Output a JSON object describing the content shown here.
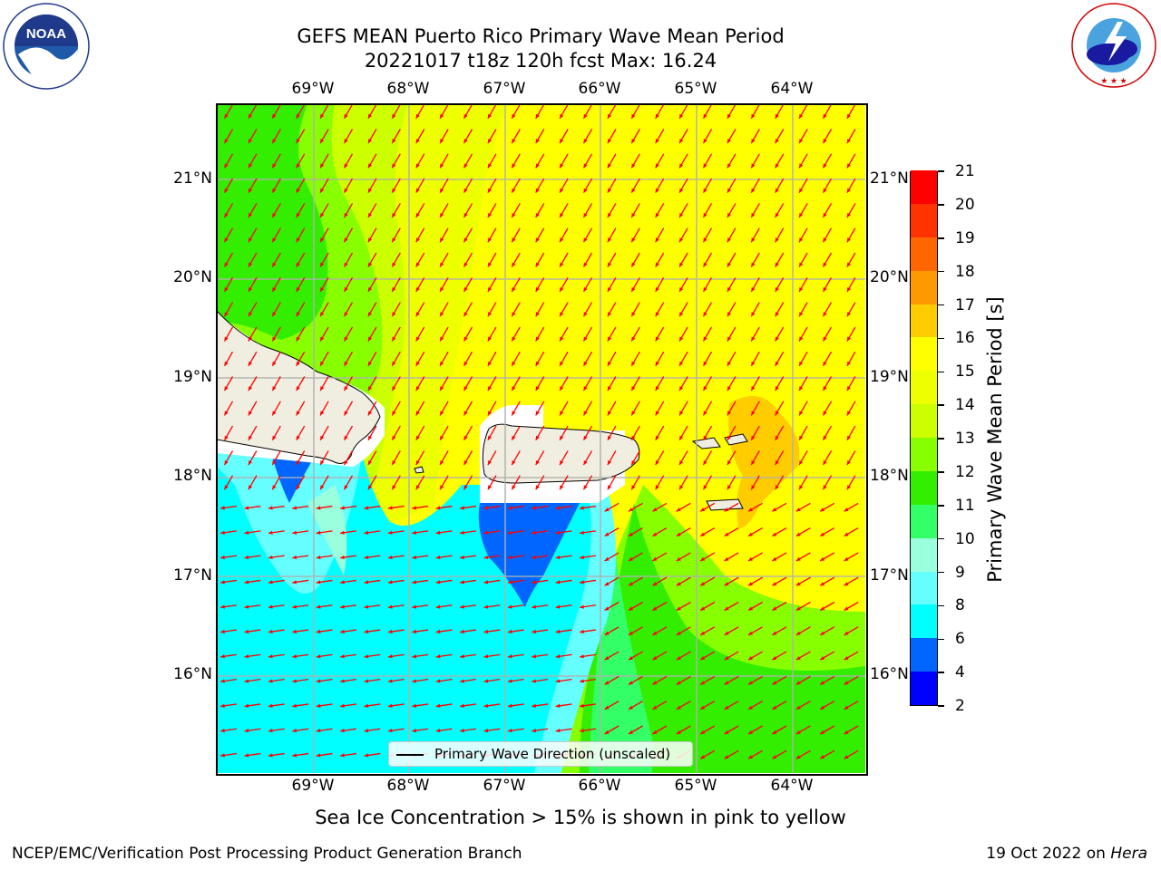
{
  "title": {
    "line1": "GEFS MEAN Puerto Rico Primary Wave Mean Period",
    "line2": "20221017 t18z 120h fcst   Max: 16.24"
  },
  "logos": {
    "left": {
      "text": "NOAA",
      "ring_top": "NATIONAL OCEANIC AND ATMOSPHERIC ADMINISTRATION",
      "ring_bottom": "U.S. DEPARTMENT OF COMMERCE"
    },
    "right": {
      "ring": "NATIONAL WEATHER SERVICE"
    }
  },
  "map": {
    "lon_labels": [
      "69°W",
      "68°W",
      "67°W",
      "66°W",
      "65°W",
      "64°W"
    ],
    "lat_labels": [
      "21°N",
      "20°N",
      "19°N",
      "18°N",
      "17°N",
      "16°N"
    ],
    "extent": {
      "lon_min": -70.0,
      "lon_max": -63.25,
      "lat_min": 15.0,
      "lat_max": 21.75
    },
    "land_color": "#efeee0",
    "arrow_color": "#ff0000"
  },
  "colorbar": {
    "label": "Primary Wave Mean Period [s]",
    "levels": [
      2,
      4,
      6,
      8,
      9,
      10,
      11,
      12,
      13,
      14,
      15,
      16,
      17,
      18,
      19,
      20,
      21
    ],
    "tick_labels": [
      "2",
      "4",
      "6",
      "8",
      "9",
      "10",
      "11",
      "12",
      "13",
      "14",
      "15",
      "16",
      "17",
      "18",
      "19",
      "20",
      "21"
    ],
    "colors": [
      "#0000ff",
      "#0066ff",
      "#00ffff",
      "#66ffff",
      "#99ffdd",
      "#33ff66",
      "#33ee00",
      "#88ff00",
      "#ccff00",
      "#eeff00",
      "#ffff00",
      "#ffcc00",
      "#ff9900",
      "#ff6600",
      "#ff3300",
      "#ff0000"
    ]
  },
  "legend": {
    "label": "Primary Wave Direction (unscaled)"
  },
  "footer": {
    "subtitle": "Sea Ice Concentration > 15% is shown in pink to yellow",
    "credit": "NCEP/EMC/Verification Post Processing Product Generation Branch",
    "date": "19 Oct 2022 on ",
    "machine": "Hera"
  }
}
